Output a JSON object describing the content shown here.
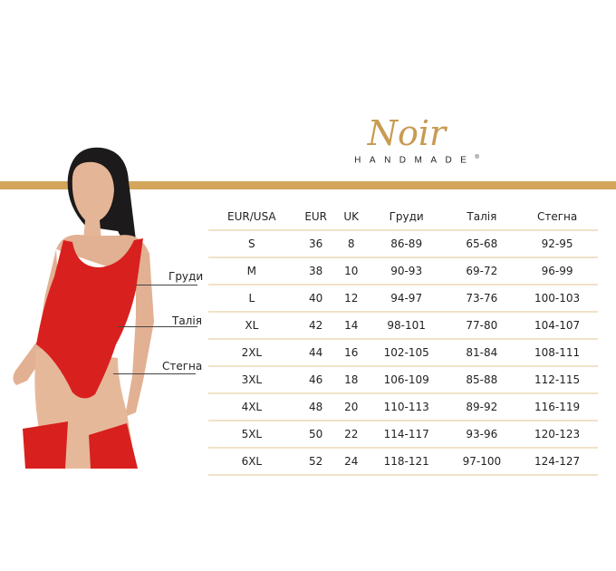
{
  "brand": {
    "script": "Noir",
    "sub": "HANDMADE",
    "registered": "®",
    "color": "#c79b52"
  },
  "accent_bar_color": "#d3a65c",
  "figure_labels": {
    "bust": "Груди",
    "waist": "Талія",
    "hips": "Стегна"
  },
  "size_table": {
    "headers": [
      "EUR/USA",
      "EUR",
      "UK",
      "Груди",
      "Талія",
      "Стегна"
    ],
    "rows": [
      [
        "S",
        "36",
        "8",
        "86-89",
        "65-68",
        "92-95"
      ],
      [
        "M",
        "38",
        "10",
        "90-93",
        "69-72",
        "96-99"
      ],
      [
        "L",
        "40",
        "12",
        "94-97",
        "73-76",
        "100-103"
      ],
      [
        "XL",
        "42",
        "14",
        "98-101",
        "77-80",
        "104-107"
      ],
      [
        "2XL",
        "44",
        "16",
        "102-105",
        "81-84",
        "108-111"
      ],
      [
        "3XL",
        "46",
        "18",
        "106-109",
        "85-88",
        "112-115"
      ],
      [
        "4XL",
        "48",
        "20",
        "110-113",
        "89-92",
        "116-119"
      ],
      [
        "5XL",
        "50",
        "22",
        "114-117",
        "93-96",
        "120-123"
      ],
      [
        "6XL",
        "52",
        "24",
        "118-121",
        "97-100",
        "124-127"
      ]
    ]
  }
}
